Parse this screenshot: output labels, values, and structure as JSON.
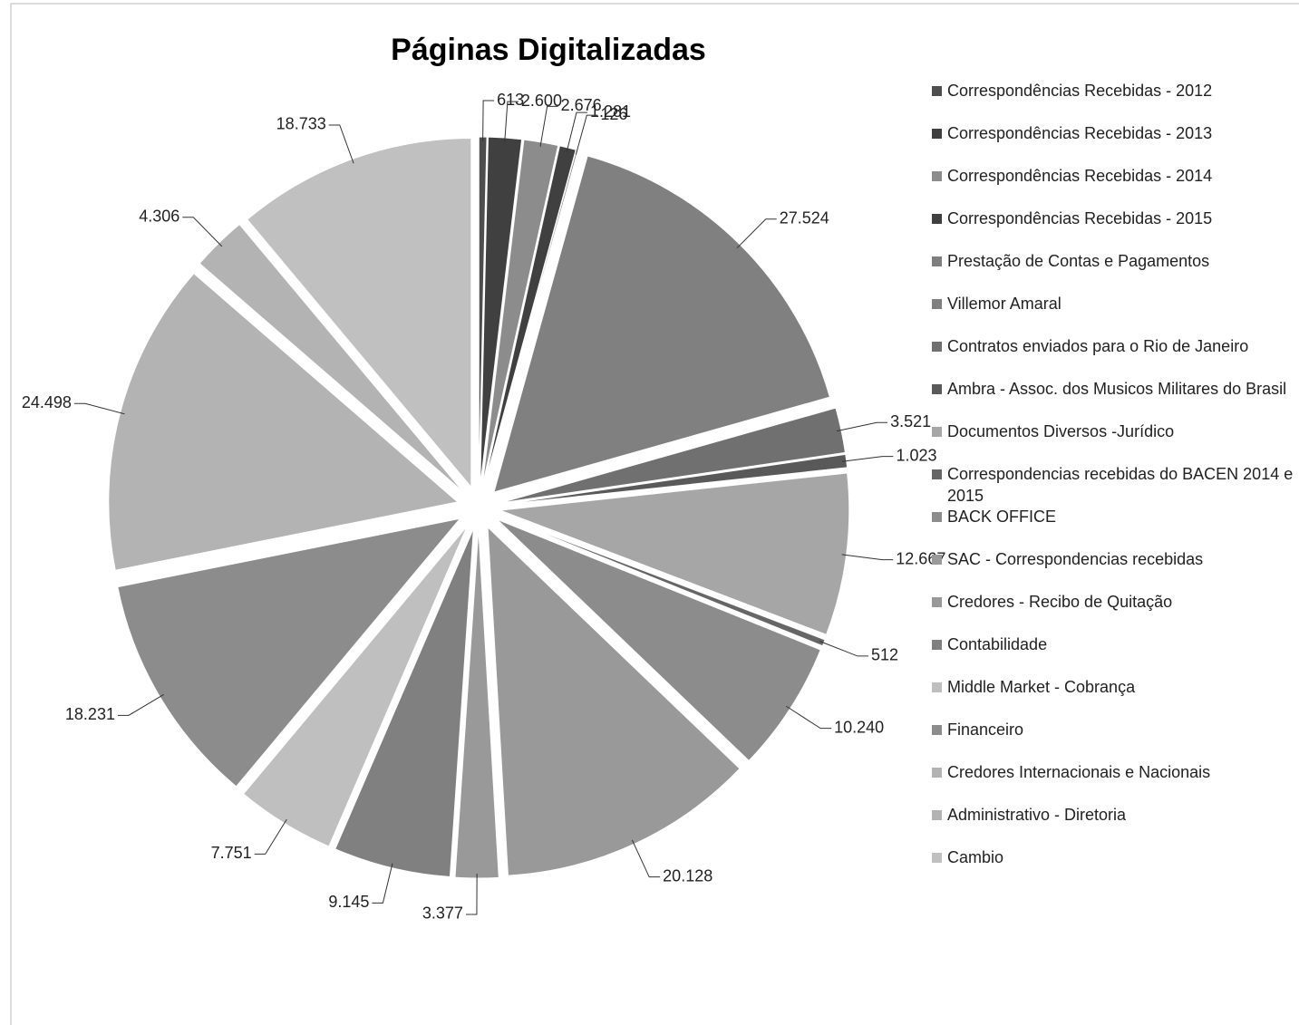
{
  "chart_data": {
    "type": "pie",
    "title": "Páginas Digitalizadas",
    "categories": [
      "Correspondências Recebidas - 2012",
      "Correspondências Recebidas - 2013",
      "Correspondências Recebidas - 2014",
      "Correspondências Recebidas - 2015",
      "Prestação de Contas e Pagamentos",
      "Villemor Amaral",
      "Contratos enviados para o Rio de Janeiro",
      "Ambra - Assoc. dos Musicos Militares do Brasil",
      "Documentos Diversos -Jurídico",
      "Correspondencias recebidas do BACEN 2014 e 2015",
      "BACK OFFICE",
      " SAC - Correspondencias recebidas",
      "Credores - Recibo de Quitação",
      "Contabilidade",
      "Middle Market - Cobrança",
      "Financeiro",
      "Credores Internacionais e Nacionais",
      "Administrativo - Diretoria",
      "Cambio"
    ],
    "values": [
      613,
      2600,
      2676,
      1281,
      126,
      27524,
      3521,
      1023,
      12667,
      512,
      10240,
      20128,
      3377,
      9145,
      7751,
      18231,
      24498,
      4306,
      18733
    ],
    "value_labels": [
      "613",
      "2.600",
      "2.676",
      "1.281",
      "126",
      "27.524",
      "3.521",
      "1.023",
      "12.667",
      "512",
      "10.240",
      "20.128",
      "3.377",
      "9.145",
      "7.751",
      "18.231",
      "24.498",
      "4.306",
      "18.733"
    ],
    "colors": [
      "#4d4d4d",
      "#404040",
      "#8c8c8c",
      "#404040",
      "#7f7f7f",
      "#808080",
      "#707070",
      "#595959",
      "#a6a6a6",
      "#666666",
      "#8c8c8c",
      "#999999",
      "#999999",
      "#808080",
      "#bfbfbf",
      "#8c8c8c",
      "#b3b3b3",
      "#b3b3b3",
      "#c0c0c0"
    ],
    "legend": "right"
  }
}
